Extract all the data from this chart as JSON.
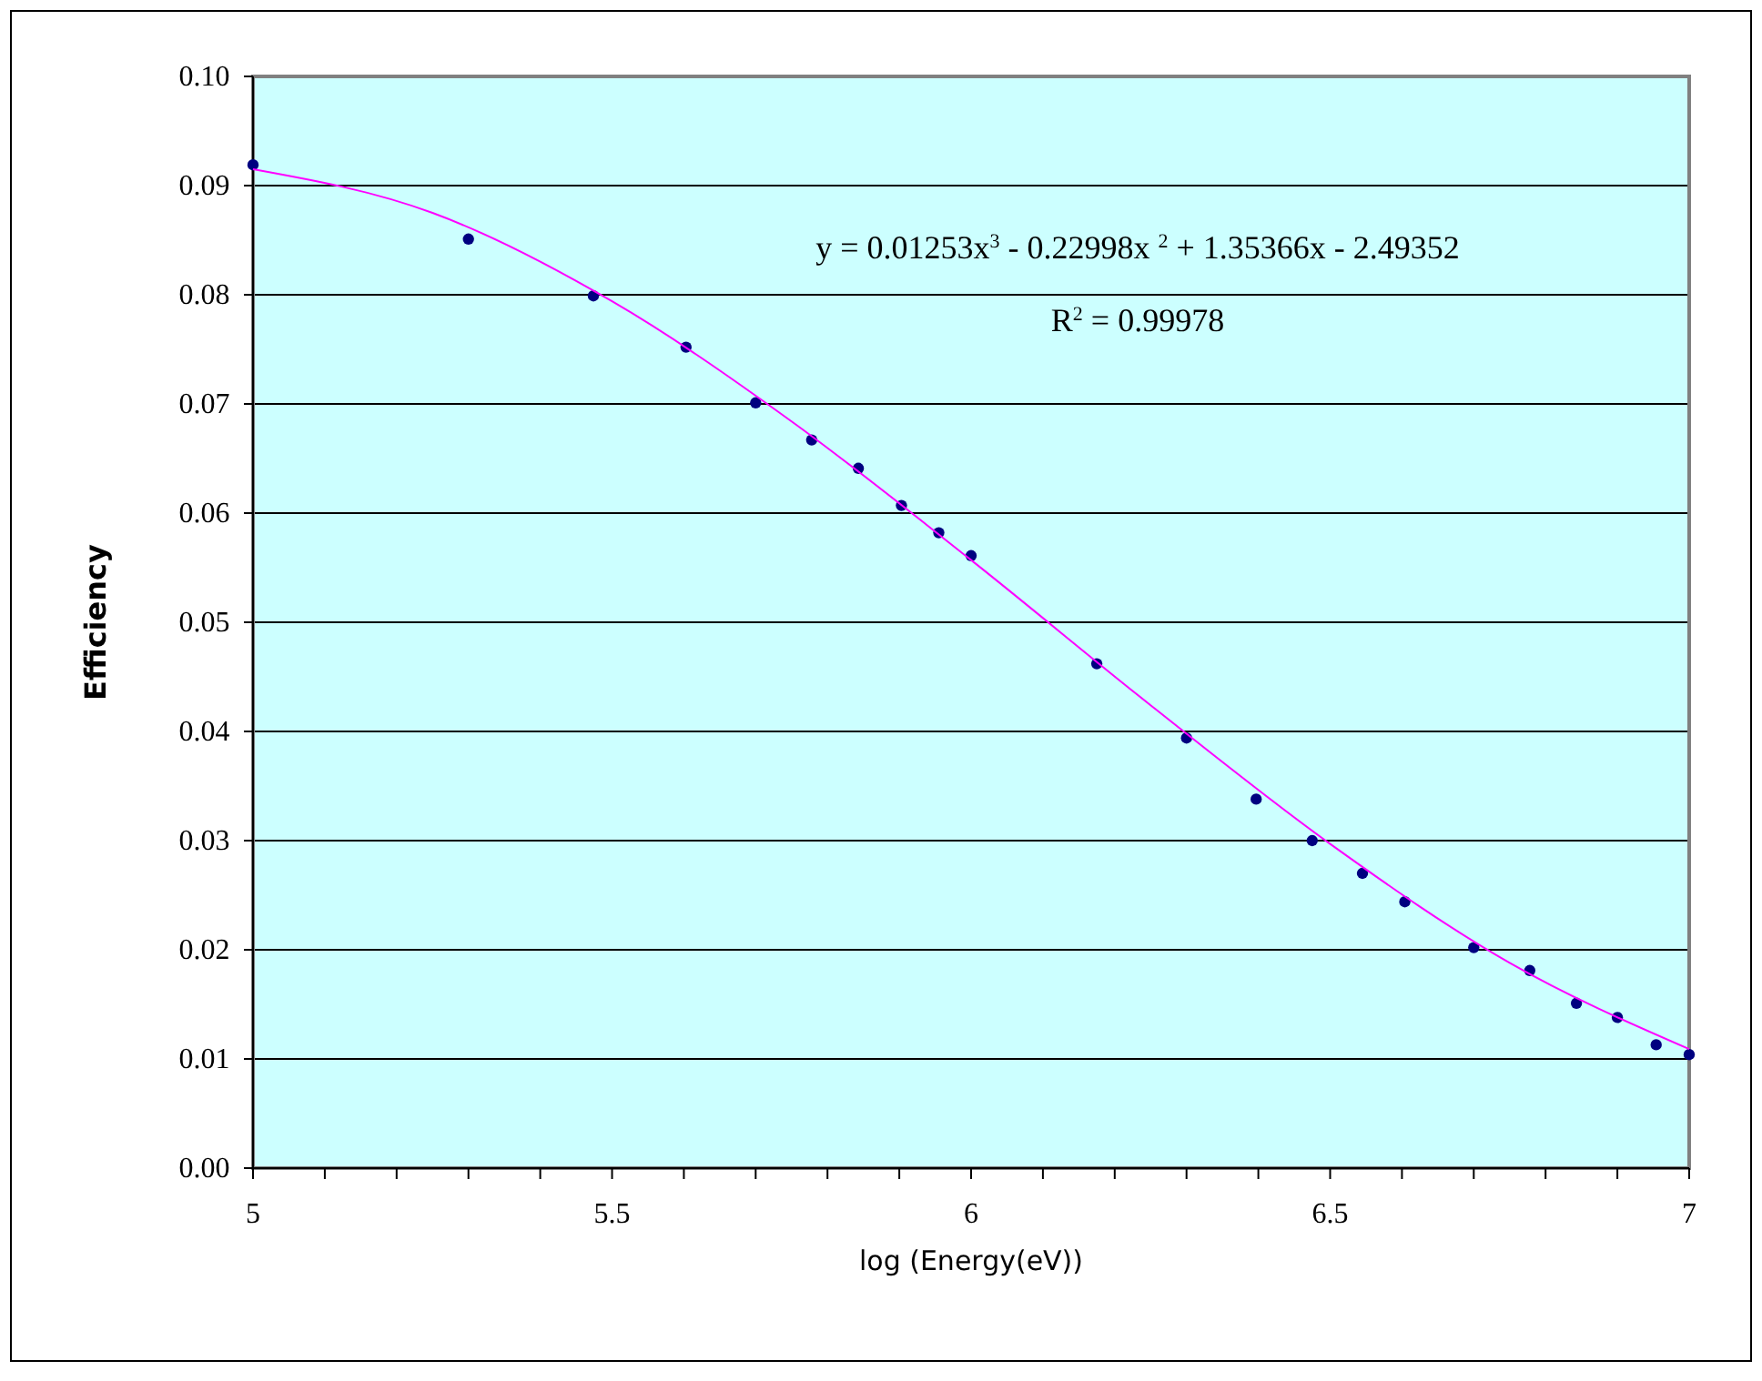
{
  "chart_data": {
    "type": "scatter",
    "xlabel": "log (Energy(eV))",
    "ylabel": "Efficiency",
    "xlim": [
      5,
      7
    ],
    "ylim": [
      0,
      0.1
    ],
    "xticks": [
      5,
      {
        "value": 5.1,
        "label": null
      },
      {
        "value": 5.2,
        "label": null
      },
      {
        "value": 5.3,
        "label": null
      },
      {
        "value": 5.4,
        "label": null
      },
      5.5,
      {
        "value": 5.6,
        "label": null
      },
      {
        "value": 5.7,
        "label": null
      },
      {
        "value": 5.8,
        "label": null
      },
      {
        "value": 5.9,
        "label": null
      },
      6,
      {
        "value": 6.1,
        "label": null
      },
      {
        "value": 6.2,
        "label": null
      },
      {
        "value": 6.3,
        "label": null
      },
      {
        "value": 6.4,
        "label": null
      },
      6.5,
      {
        "value": 6.6,
        "label": null
      },
      {
        "value": 6.7,
        "label": null
      },
      {
        "value": 6.8,
        "label": null
      },
      {
        "value": 6.9,
        "label": null
      },
      7
    ],
    "yticks": [
      {
        "value": 0,
        "label": "0.00"
      },
      {
        "value": 0.01,
        "label": "0.01"
      },
      {
        "value": 0.02,
        "label": "0.02"
      },
      {
        "value": 0.03,
        "label": "0.03"
      },
      {
        "value": 0.04,
        "label": "0.04"
      },
      {
        "value": 0.05,
        "label": "0.05"
      },
      {
        "value": 0.06,
        "label": "0.06"
      },
      {
        "value": 0.07,
        "label": "0.07"
      },
      {
        "value": 0.08,
        "label": "0.08"
      },
      {
        "value": 0.09,
        "label": "0.09"
      },
      {
        "value": 0.1,
        "label": "0.10"
      }
    ],
    "grid": "y",
    "series": [
      {
        "color": "#000080",
        "marker": "circle",
        "x": [
          5,
          5.3,
          5.474,
          5.603,
          5.7,
          5.778,
          5.843,
          5.903,
          5.955,
          6,
          6.175,
          6.3,
          6.397,
          6.475,
          6.545,
          6.604,
          6.7,
          6.778,
          6.843,
          6.9,
          6.954,
          7
        ],
        "values": [
          0.0919,
          0.0851,
          0.0799,
          0.0752,
          0.0701,
          0.0667,
          0.0641,
          0.0607,
          0.0582,
          0.0561,
          0.0462,
          0.0394,
          0.0338,
          0.03,
          0.027,
          0.0244,
          0.0202,
          0.0181,
          0.0151,
          0.0138,
          0.0113,
          0.0104
        ]
      },
      {
        "type": "line",
        "color": "#ff00ff",
        "marker": "none",
        "x": [
          5,
          5.25,
          5.5,
          5.75,
          6,
          6.25,
          6.5,
          6.75,
          7
        ],
        "values": [
          0.0915,
          0.0875,
          0.0794,
          0.0684,
          0.0557,
          0.0424,
          0.0297,
          0.0188,
          0.0109
        ]
      }
    ],
    "annotations": [
      "y = 0.01253x$^{3}$ - 0.22998x $^{2}$ + 1.35366x - 2.49352",
      "R$^{2}$ = 0.99978"
    ]
  }
}
